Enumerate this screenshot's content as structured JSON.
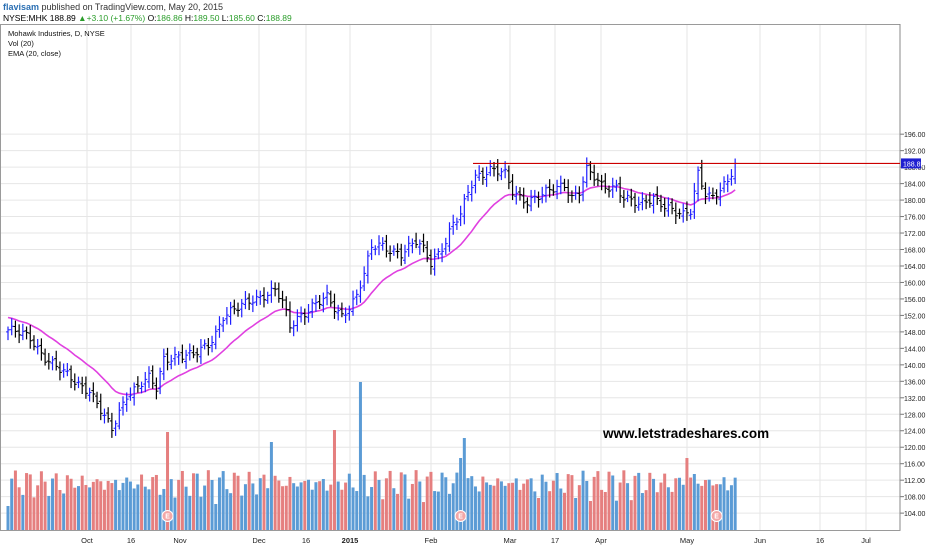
{
  "header": {
    "user": "flavisam",
    "published": "published on TradingView.com, May 20, 2015",
    "symbol": "NYSE:MHK",
    "last": "188.89",
    "change": "+3.10 (+1.67%)",
    "o_label": "O:",
    "o_value": "186.86",
    "h_label": "H:",
    "h_value": "189.50",
    "l_label": "L:",
    "l_value": "185.60",
    "c_label": "C:",
    "c_value": "188.89"
  },
  "legend": {
    "title": "Mohawk Industries, D, NYSE",
    "vol": "Vol (20)",
    "ema": "EMA (20, close)"
  },
  "watermark": "www.letstradeshares.com",
  "chart_data": {
    "type": "ohlc",
    "price_axis": {
      "min": 100,
      "max": 198,
      "ticks": [
        "196.00",
        "192.00",
        "188.00",
        "184.00",
        "180.00",
        "176.00",
        "172.00",
        "168.00",
        "164.00",
        "160.00",
        "156.00",
        "152.00",
        "148.00",
        "144.00",
        "140.00",
        "136.00",
        "132.00",
        "128.00",
        "124.00",
        "120.00",
        "116.00",
        "112.00",
        "108.00",
        "104.00"
      ],
      "last_price_label": "188.89"
    },
    "time_axis": [
      "Oct",
      "16",
      "Nov",
      "Dec",
      "16",
      "2015",
      "Feb",
      "Mar",
      "17",
      "Apr",
      "May",
      "Jun",
      "16",
      "Jul"
    ],
    "resistance_level": 188.9,
    "earnings_marker": "E",
    "colors": {
      "up": "#1f1fff",
      "down": "#000000",
      "ema": "#e040e0",
      "resistance": "#cc0000",
      "vol_up": "#5b9bd5",
      "vol_down": "#e57f7f",
      "price_tag": "#1f1fd0",
      "grid": "#e6e6e6"
    },
    "close_anchors": [
      [
        0,
        148.5
      ],
      [
        6,
        146.5
      ],
      [
        10,
        142
      ],
      [
        14,
        138.5
      ],
      [
        18,
        136
      ],
      [
        22,
        134
      ],
      [
        26,
        127
      ],
      [
        28,
        124
      ],
      [
        32,
        133
      ],
      [
        36,
        135.5
      ],
      [
        38,
        136.5
      ],
      [
        40,
        134
      ],
      [
        42,
        141.5
      ],
      [
        46,
        142.5
      ],
      [
        50,
        142
      ],
      [
        54,
        145
      ],
      [
        56,
        148
      ],
      [
        58,
        152
      ],
      [
        62,
        153.5
      ],
      [
        66,
        156
      ],
      [
        70,
        157.5
      ],
      [
        72,
        158
      ],
      [
        74,
        155
      ],
      [
        76,
        149
      ],
      [
        78,
        151.5
      ],
      [
        82,
        154.5
      ],
      [
        86,
        156
      ],
      [
        88,
        153.5
      ],
      [
        90,
        152
      ],
      [
        94,
        157
      ],
      [
        96,
        162
      ],
      [
        98,
        168
      ],
      [
        100,
        169
      ],
      [
        104,
        168
      ],
      [
        106,
        167
      ],
      [
        110,
        169.5
      ],
      [
        112,
        168
      ],
      [
        114,
        165
      ],
      [
        118,
        170
      ],
      [
        120,
        174
      ],
      [
        122,
        176
      ],
      [
        124,
        182
      ],
      [
        126,
        186
      ],
      [
        130,
        187.5
      ],
      [
        134,
        186
      ],
      [
        136,
        182
      ],
      [
        140,
        180
      ],
      [
        144,
        181
      ],
      [
        148,
        183
      ],
      [
        150,
        184
      ],
      [
        152,
        181
      ],
      [
        154,
        182
      ],
      [
        156,
        187
      ],
      [
        160,
        183.5
      ],
      [
        164,
        183.5
      ],
      [
        166,
        180.5
      ],
      [
        170,
        178.5
      ],
      [
        174,
        181
      ],
      [
        178,
        178
      ],
      [
        180,
        176.5
      ],
      [
        182,
        176
      ],
      [
        184,
        177.5
      ],
      [
        186,
        187
      ],
      [
        188,
        182
      ],
      [
        190,
        180.5
      ],
      [
        192,
        182
      ],
      [
        194,
        184
      ],
      [
        196,
        188.9
      ]
    ],
    "volume_spikes": [
      [
        43,
        2.45
      ],
      [
        71,
        2.2
      ],
      [
        88,
        2.5
      ],
      [
        95,
        3.7
      ],
      [
        122,
        1.8
      ],
      [
        123,
        2.3
      ],
      [
        143,
        0.8
      ],
      [
        183,
        1.8
      ],
      [
        185,
        1.4
      ]
    ]
  }
}
